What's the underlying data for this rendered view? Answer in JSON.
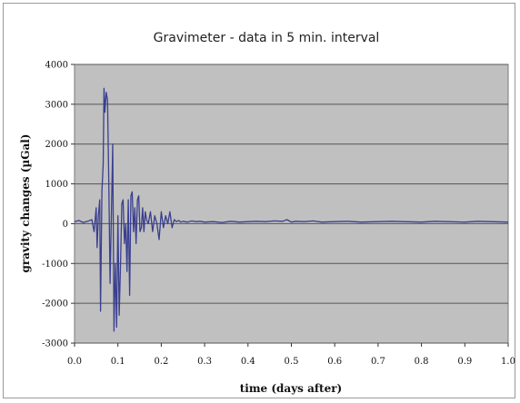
{
  "chart_data": {
    "type": "line",
    "title": "Gravimeter - data in 5 min. interval",
    "xlabel": "time (days after)",
    "ylabel": "gravity changes (µGal)",
    "xlim": [
      0.0,
      1.0
    ],
    "ylim": [
      -3000,
      4000
    ],
    "xticks": [
      "0.0",
      "0.1",
      "0.2",
      "0.3",
      "0.4",
      "0.5",
      "0.6",
      "0.7",
      "0.8",
      "0.9",
      "1.0"
    ],
    "yticks": [
      "4000",
      "3000",
      "2000",
      "1000",
      "0",
      "-1000",
      "-2000",
      "-3000"
    ],
    "grid": "horizontal",
    "plot_background": "#c0c0c0",
    "series": [
      {
        "color": "#3a3f8f",
        "x": [
          0.0,
          0.01,
          0.02,
          0.03,
          0.04,
          0.045,
          0.05,
          0.052,
          0.055,
          0.058,
          0.06,
          0.063,
          0.066,
          0.068,
          0.07,
          0.073,
          0.076,
          0.079,
          0.082,
          0.085,
          0.088,
          0.091,
          0.094,
          0.097,
          0.1,
          0.103,
          0.106,
          0.109,
          0.112,
          0.115,
          0.118,
          0.121,
          0.124,
          0.127,
          0.13,
          0.133,
          0.136,
          0.139,
          0.142,
          0.145,
          0.148,
          0.151,
          0.154,
          0.157,
          0.16,
          0.163,
          0.166,
          0.17,
          0.175,
          0.18,
          0.185,
          0.19,
          0.195,
          0.2,
          0.205,
          0.21,
          0.215,
          0.22,
          0.225,
          0.23,
          0.235,
          0.24,
          0.245,
          0.25,
          0.26,
          0.27,
          0.28,
          0.29,
          0.3,
          0.32,
          0.34,
          0.36,
          0.38,
          0.4,
          0.42,
          0.44,
          0.46,
          0.48,
          0.49,
          0.5,
          0.51,
          0.53,
          0.55,
          0.57,
          0.6,
          0.63,
          0.66,
          0.7,
          0.73,
          0.76,
          0.8,
          0.83,
          0.86,
          0.9,
          0.93,
          0.96,
          1.0
        ],
        "y": [
          50,
          80,
          30,
          60,
          100,
          -200,
          400,
          -600,
          200,
          600,
          -2200,
          800,
          1500,
          3400,
          2800,
          3300,
          3100,
          1000,
          -1500,
          200,
          2000,
          -2700,
          -1000,
          -2600,
          200,
          -2300,
          -1000,
          500,
          600,
          -500,
          0,
          -1200,
          600,
          -1800,
          700,
          800,
          -200,
          400,
          -500,
          600,
          700,
          -200,
          -100,
          400,
          -200,
          300,
          100,
          0,
          300,
          -200,
          200,
          0,
          -400,
          300,
          -100,
          200,
          0,
          300,
          -100,
          100,
          50,
          80,
          40,
          60,
          40,
          70,
          50,
          60,
          40,
          50,
          30,
          60,
          40,
          50,
          60,
          50,
          70,
          60,
          100,
          40,
          60,
          50,
          70,
          40,
          50,
          60,
          40,
          50,
          60,
          50,
          40,
          60,
          50,
          40,
          60,
          50,
          40
        ]
      }
    ]
  }
}
